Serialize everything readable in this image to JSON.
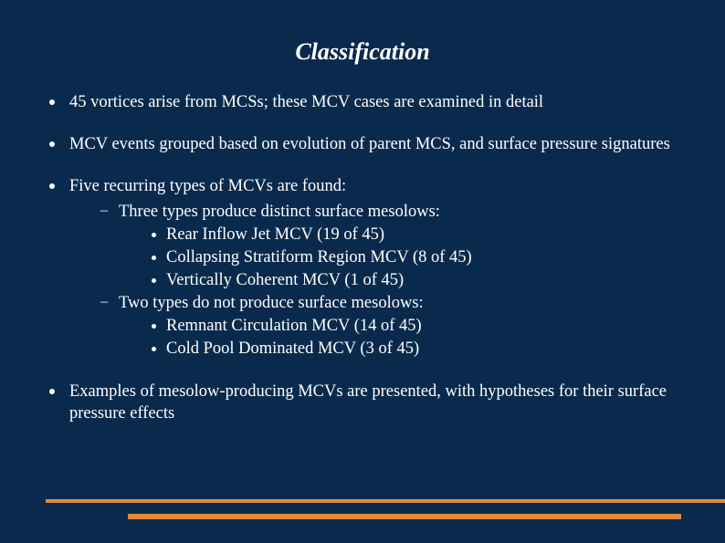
{
  "title": "Classification",
  "colors": {
    "background": "#0a2a4d",
    "text": "#ffffff",
    "accent": "#e08a3a"
  },
  "typography": {
    "title_fontsize": 26,
    "title_style": "italic bold",
    "body_fontsize": 18.5,
    "font_family": "Times New Roman"
  },
  "bullets": [
    {
      "text": "45 vortices arise from MCSs; these MCV cases are examined in detail"
    },
    {
      "text": "MCV events grouped based on evolution of parent MCS, and surface pressure signatures"
    },
    {
      "text": "Five recurring types of MCVs are found:",
      "sub": [
        {
          "text": "Three types produce distinct surface mesolows:",
          "sub": [
            {
              "text": "Rear Inflow Jet MCV (19 of 45)"
            },
            {
              "text": "Collapsing Stratiform Region MCV (8 of 45)"
            },
            {
              "text": "Vertically Coherent MCV (1 of 45)"
            }
          ]
        },
        {
          "text": "Two types do not produce surface mesolows:",
          "sub": [
            {
              "text": "Remnant Circulation MCV (14 of 45)"
            },
            {
              "text": "Cold Pool Dominated MCV (3 of 45)"
            }
          ]
        }
      ]
    },
    {
      "text": "Examples of mesolow-producing MCVs are presented, with hypotheses for their surface pressure effects"
    }
  ]
}
